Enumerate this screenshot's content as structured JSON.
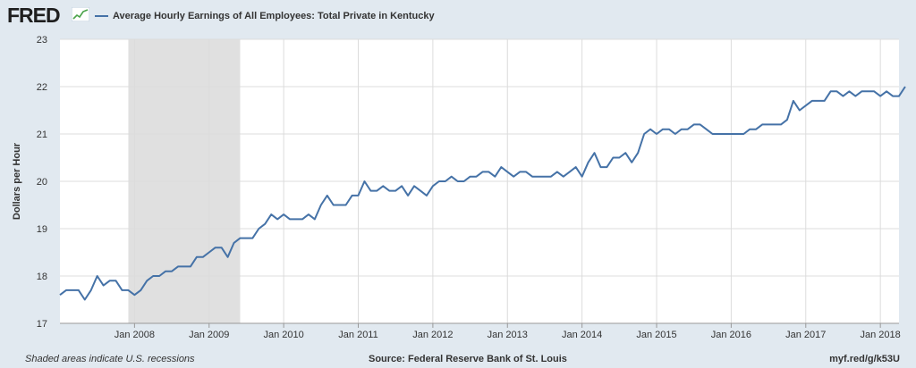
{
  "header": {
    "logo_text": "FRED",
    "logo_icon": "line-chart-icon"
  },
  "colors": {
    "series": "#4572a7",
    "recession": "#e0e0e0",
    "background": "#e1e9f0",
    "plot_background": "#ffffff",
    "grid": "#dcdcdc"
  },
  "footer": {
    "note": "Shaded areas indicate U.S. recessions",
    "source": "Source: Federal Reserve Bank of St. Louis",
    "link": "myf.red/g/k53U"
  },
  "chart_data": {
    "type": "line",
    "title": "",
    "xlabel": "",
    "ylabel": "Dollars per Hour",
    "ylim": [
      17,
      23
    ],
    "yticks": [
      17,
      18,
      19,
      20,
      21,
      22,
      23
    ],
    "xlim": [
      "2007-01",
      "2018-04"
    ],
    "xticks": [
      {
        "x": "2008-01",
        "label": "Jan 2008"
      },
      {
        "x": "2009-01",
        "label": "Jan 2009"
      },
      {
        "x": "2010-01",
        "label": "Jan 2010"
      },
      {
        "x": "2011-01",
        "label": "Jan 2011"
      },
      {
        "x": "2012-01",
        "label": "Jan 2012"
      },
      {
        "x": "2013-01",
        "label": "Jan 2013"
      },
      {
        "x": "2014-01",
        "label": "Jan 2014"
      },
      {
        "x": "2015-01",
        "label": "Jan 2015"
      },
      {
        "x": "2016-01",
        "label": "Jan 2016"
      },
      {
        "x": "2017-01",
        "label": "Jan 2017"
      },
      {
        "x": "2018-01",
        "label": "Jan 2018"
      }
    ],
    "grid": true,
    "recessions": [
      {
        "start": "2007-12",
        "end": "2009-06"
      }
    ],
    "series": [
      {
        "name": "Average Hourly Earnings of All Employees: Total Private in Kentucky",
        "start": "2007-01",
        "frequency": "monthly",
        "values": [
          17.6,
          17.7,
          17.7,
          17.7,
          17.5,
          17.7,
          18.0,
          17.8,
          17.9,
          17.9,
          17.7,
          17.7,
          17.6,
          17.7,
          17.9,
          18.0,
          18.0,
          18.1,
          18.1,
          18.2,
          18.2,
          18.2,
          18.4,
          18.4,
          18.5,
          18.6,
          18.6,
          18.4,
          18.7,
          18.8,
          18.8,
          18.8,
          19.0,
          19.1,
          19.3,
          19.2,
          19.3,
          19.2,
          19.2,
          19.2,
          19.3,
          19.2,
          19.5,
          19.7,
          19.5,
          19.5,
          19.5,
          19.7,
          19.7,
          20.0,
          19.8,
          19.8,
          19.9,
          19.8,
          19.8,
          19.9,
          19.7,
          19.9,
          19.8,
          19.7,
          19.9,
          20.0,
          20.0,
          20.1,
          20.0,
          20.0,
          20.1,
          20.1,
          20.2,
          20.2,
          20.1,
          20.3,
          20.2,
          20.1,
          20.2,
          20.2,
          20.1,
          20.1,
          20.1,
          20.1,
          20.2,
          20.1,
          20.2,
          20.3,
          20.1,
          20.4,
          20.6,
          20.3,
          20.3,
          20.5,
          20.5,
          20.6,
          20.4,
          20.6,
          21.0,
          21.1,
          21.0,
          21.1,
          21.1,
          21.0,
          21.1,
          21.1,
          21.2,
          21.2,
          21.1,
          21.0,
          21.0,
          21.0,
          21.0,
          21.0,
          21.0,
          21.1,
          21.1,
          21.2,
          21.2,
          21.2,
          21.2,
          21.3,
          21.7,
          21.5,
          21.6,
          21.7,
          21.7,
          21.7,
          21.9,
          21.9,
          21.8,
          21.9,
          21.8,
          21.9,
          21.9,
          21.9,
          21.8,
          21.9,
          21.8,
          21.8,
          22.0
        ]
      }
    ]
  }
}
